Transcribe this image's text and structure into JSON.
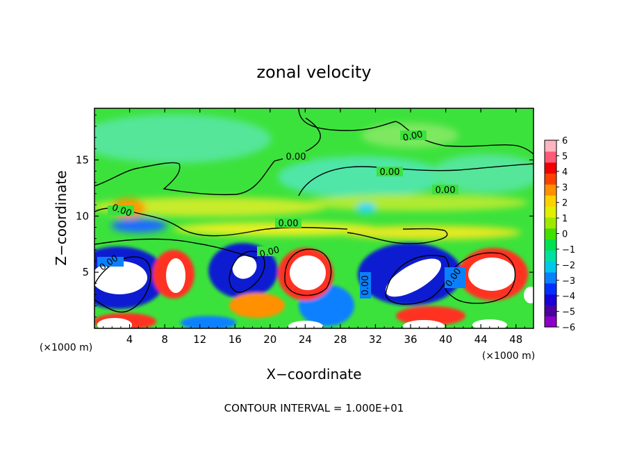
{
  "chart_data": {
    "type": "heatmap",
    "title": "zonal velocity",
    "xlabel": "X−coordinate",
    "ylabel": "Z−coordinate",
    "x_units": "(×1000 m)",
    "z_units": "(×1000 m)",
    "xlim": [
      0,
      50
    ],
    "ylim": [
      0,
      19.6
    ],
    "x_ticks": [
      "4",
      "8",
      "12",
      "16",
      "20",
      "24",
      "28",
      "32",
      "36",
      "40",
      "44",
      "48"
    ],
    "y_ticks": [
      "5",
      "10",
      "15"
    ],
    "colorbar": {
      "range": [
        -6,
        6
      ],
      "labels": [
        "6",
        "5",
        "4",
        "3",
        "2",
        "1",
        "0",
        "−1",
        "−2",
        "−3",
        "−4",
        "−5",
        "−6"
      ],
      "colors": [
        "#8b00c8",
        "#4b00a0",
        "#1a00d8",
        "#0030ff",
        "#0a80ff",
        "#00c8e8",
        "#00e0a0",
        "#00e050",
        "#40e000",
        "#a0e800",
        "#e0f000",
        "#ffd000",
        "#ff9000",
        "#ff4000",
        "#f00000",
        "#ff5a78",
        "#ffb4c0"
      ]
    },
    "contour_labels": [
      "0.00",
      "0.00",
      "0.00",
      "0.00",
      "0.00",
      "0.00",
      "0.00",
      "0.00",
      "0.00",
      "0.00"
    ],
    "contour_interval_text": "CONTOUR INTERVAL = 1.000E+01"
  }
}
